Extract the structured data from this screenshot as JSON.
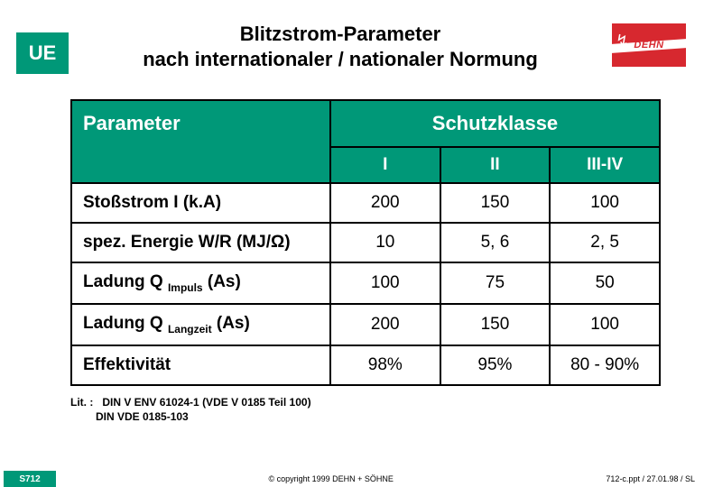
{
  "header": {
    "badge": "UE",
    "title_line1": "Blitzstrom-Parameter",
    "title_line2": "nach internationaler / nationaler Normung",
    "logo_brand": "DEHN"
  },
  "table": {
    "param_header": "Parameter",
    "class_header": "Schutzklasse",
    "classes": [
      "I",
      "II",
      "III-IV"
    ],
    "rows": [
      {
        "label_html": "Stoßstrom  I (k.A)",
        "values": [
          "200",
          "150",
          "100"
        ]
      },
      {
        "label_html": "spez. Energie W/R (MJ/Ω)",
        "values": [
          "10",
          "5, 6",
          "2, 5"
        ]
      },
      {
        "label_html": "Ladung Q <span class=\"sub\">Impuls</span> (As)",
        "values": [
          "100",
          "75",
          "50"
        ]
      },
      {
        "label_html": "Ladung Q <span class=\"sub\">Langzeit</span> (As)",
        "values": [
          "200",
          "150",
          "100"
        ]
      },
      {
        "label_html": "Effektivität",
        "values": [
          "98%",
          "95%",
          "80 - 90%"
        ]
      }
    ]
  },
  "lit": {
    "prefix": "Lit. :",
    "line1": "DIN V ENV 61024-1 (VDE V 0185 Teil 100)",
    "line2": "DIN VDE 0185-103"
  },
  "footer": {
    "slide": "S712",
    "copyright": "© copyright 1999 DEHN + SÖHNE",
    "right": "712-c.ppt / 27.01.98 / SL"
  },
  "colors": {
    "brand_green": "#009878",
    "brand_red": "#d7282f",
    "white": "#ffffff",
    "black": "#000000"
  }
}
